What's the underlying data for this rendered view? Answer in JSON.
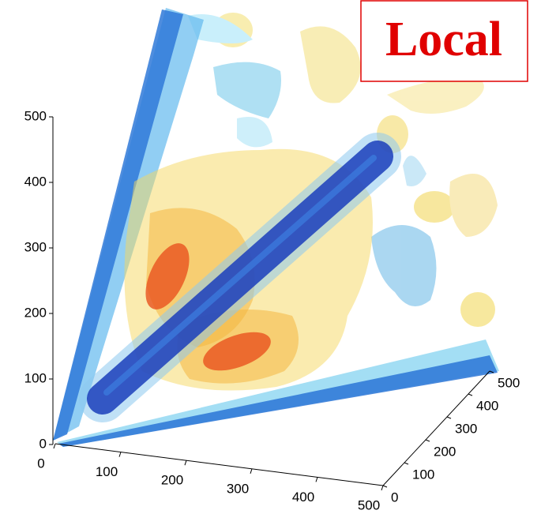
{
  "chart_data": {
    "type": "isosurface3d",
    "title": "Local",
    "xlim": [
      0,
      500
    ],
    "xticks": [
      0,
      100,
      200,
      300,
      400,
      500
    ],
    "ylim": [
      0,
      500
    ],
    "yticks": [
      0,
      100,
      200,
      300,
      400,
      500
    ],
    "zlim": [
      0,
      500
    ],
    "zticks": [
      0,
      100,
      200,
      300,
      400,
      500
    ]
  }
}
